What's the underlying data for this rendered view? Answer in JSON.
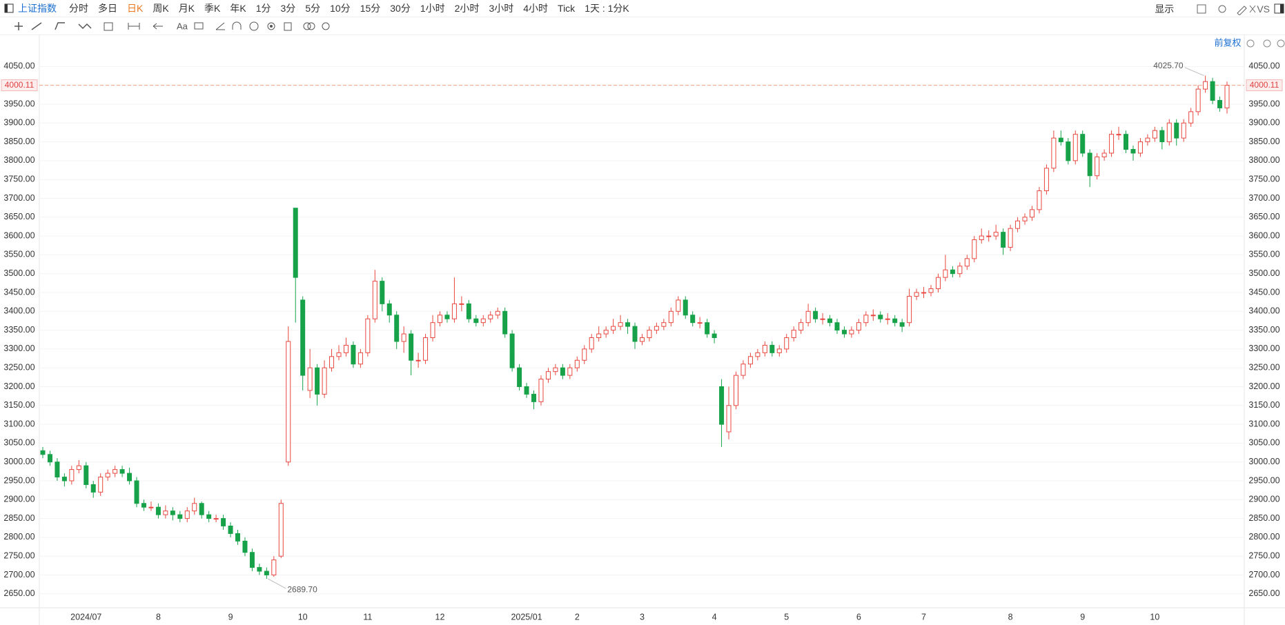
{
  "toolbar": {
    "symbol": "上证指数",
    "periods": [
      "分时",
      "多日",
      "日K",
      "周K",
      "月K",
      "季K",
      "年K",
      "1分",
      "3分",
      "5分",
      "10分",
      "15分",
      "30分",
      "1小时",
      "2小时",
      "3小时",
      "4小时",
      "Tick",
      "1天 : 1分K"
    ],
    "display": "显示",
    "vs": "VS",
    "font_tool": "Aa"
  },
  "chart_data": {
    "type": "candlestick",
    "adjustment": "前复权",
    "categories": [
      null,
      null,
      null,
      null,
      null,
      null,
      "2024/07",
      null,
      null,
      null,
      null,
      null,
      null,
      null,
      null,
      null,
      "8",
      null,
      null,
      null,
      null,
      null,
      null,
      null,
      null,
      null,
      "9",
      null,
      null,
      null,
      null,
      null,
      null,
      null,
      null,
      null,
      "10",
      null,
      null,
      null,
      null,
      null,
      null,
      null,
      null,
      "11",
      null,
      null,
      null,
      null,
      null,
      null,
      null,
      null,
      null,
      "12",
      null,
      null,
      null,
      null,
      null,
      null,
      null,
      null,
      null,
      null,
      null,
      "2025/01",
      null,
      null,
      null,
      null,
      null,
      null,
      "2",
      null,
      null,
      null,
      null,
      null,
      null,
      null,
      null,
      "3",
      null,
      null,
      null,
      null,
      null,
      null,
      null,
      null,
      null,
      "4",
      null,
      null,
      null,
      null,
      null,
      null,
      null,
      null,
      null,
      "5",
      null,
      null,
      null,
      null,
      null,
      null,
      null,
      null,
      null,
      "6",
      null,
      null,
      null,
      null,
      null,
      null,
      null,
      null,
      "7",
      null,
      null,
      null,
      null,
      null,
      null,
      null,
      null,
      null,
      null,
      null,
      "8",
      null,
      null,
      null,
      null,
      null,
      null,
      null,
      null,
      null,
      "9",
      null,
      null,
      null,
      null,
      null,
      null,
      null,
      null,
      null,
      "10",
      null,
      null,
      null,
      null,
      null,
      null,
      null,
      null,
      null,
      null
    ],
    "open": [
      3030,
      3020,
      3000,
      2960,
      2950,
      2980,
      2990,
      2940,
      2920,
      2960,
      2970,
      2980,
      2970,
      2950,
      2890,
      2880,
      2880,
      2860,
      2870,
      2860,
      2850,
      2870,
      2890,
      2860,
      2850,
      2850,
      2830,
      2810,
      2790,
      2760,
      2720,
      2710,
      2700,
      2750,
      3000,
      3674,
      3430,
      3190,
      3250,
      3180,
      3250,
      3280,
      3290,
      3310,
      3260,
      3290,
      3380,
      3480,
      3420,
      3390,
      3320,
      3340,
      3270,
      3270,
      3330,
      3370,
      3390,
      3380,
      3420,
      3420,
      3380,
      3370,
      3380,
      3390,
      3400,
      3340,
      3250,
      3200,
      3180,
      3160,
      3220,
      3240,
      3250,
      3230,
      3250,
      3270,
      3300,
      3330,
      3340,
      3350,
      3360,
      3370,
      3360,
      3320,
      3330,
      3350,
      3360,
      3370,
      3400,
      3430,
      3390,
      3370,
      3370,
      3340,
      3200,
      3080,
      3150,
      3230,
      3260,
      3280,
      3290,
      3310,
      3290,
      3300,
      3330,
      3350,
      3370,
      3400,
      3380,
      3380,
      3370,
      3350,
      3340,
      3350,
      3370,
      3390,
      3390,
      3380,
      3380,
      3370,
      3370,
      3440,
      3450,
      3450,
      3460,
      3490,
      3510,
      3500,
      3520,
      3540,
      3590,
      3600,
      3600,
      3610,
      3570,
      3620,
      3640,
      3650,
      3670,
      3720,
      3780,
      3860,
      3850,
      3800,
      3870,
      3820,
      3760,
      3810,
      3820,
      3870,
      3870,
      3830,
      3820,
      3850,
      3860,
      3880,
      3850,
      3900,
      3860,
      3900,
      3930,
      3990,
      4010,
      3960,
      3940
    ],
    "high": [
      3040,
      3030,
      3010,
      2970,
      2990,
      3005,
      3000,
      2950,
      2970,
      2980,
      2990,
      2990,
      2985,
      2960,
      2900,
      2895,
      2890,
      2885,
      2880,
      2870,
      2880,
      2905,
      2895,
      2870,
      2860,
      2860,
      2840,
      2820,
      2800,
      2770,
      2730,
      2720,
      2750,
      2900,
      3360,
      3674,
      3440,
      3300,
      3260,
      3270,
      3300,
      3310,
      3330,
      3320,
      3300,
      3390,
      3510,
      3490,
      3430,
      3400,
      3360,
      3350,
      3290,
      3340,
      3390,
      3400,
      3400,
      3490,
      3440,
      3430,
      3390,
      3390,
      3400,
      3410,
      3410,
      3350,
      3260,
      3210,
      3190,
      3230,
      3250,
      3260,
      3260,
      3260,
      3280,
      3310,
      3340,
      3360,
      3360,
      3380,
      3390,
      3380,
      3370,
      3340,
      3360,
      3370,
      3380,
      3410,
      3440,
      3440,
      3400,
      3385,
      3380,
      3350,
      3220,
      3200,
      3240,
      3270,
      3290,
      3300,
      3320,
      3320,
      3310,
      3340,
      3360,
      3380,
      3420,
      3410,
      3395,
      3390,
      3380,
      3360,
      3360,
      3380,
      3400,
      3405,
      3400,
      3395,
      3390,
      3380,
      3460,
      3460,
      3465,
      3470,
      3500,
      3550,
      3520,
      3530,
      3550,
      3600,
      3620,
      3615,
      3630,
      3620,
      3630,
      3650,
      3660,
      3680,
      3730,
      3790,
      3880,
      3880,
      3860,
      3880,
      3880,
      3830,
      3820,
      3830,
      3880,
      3890,
      3880,
      3840,
      3860,
      3870,
      3890,
      3890,
      3910,
      3910,
      3910,
      3940,
      4000,
      4025.7,
      4020,
      3970,
      4010
    ],
    "low": [
      3010,
      2990,
      2950,
      2935,
      2940,
      2970,
      2930,
      2905,
      2910,
      2950,
      2960,
      2960,
      2940,
      2880,
      2870,
      2870,
      2850,
      2850,
      2845,
      2840,
      2840,
      2860,
      2850,
      2840,
      2840,
      2820,
      2800,
      2780,
      2750,
      2710,
      2700,
      2689.7,
      2695,
      2745,
      2990,
      3370,
      3190,
      3170,
      3150,
      3170,
      3240,
      3270,
      3280,
      3250,
      3250,
      3280,
      3370,
      3400,
      3370,
      3300,
      3290,
      3230,
      3250,
      3260,
      3320,
      3360,
      3370,
      3370,
      3400,
      3370,
      3360,
      3360,
      3370,
      3380,
      3330,
      3240,
      3190,
      3170,
      3140,
      3150,
      3210,
      3230,
      3220,
      3220,
      3240,
      3260,
      3290,
      3320,
      3330,
      3340,
      3350,
      3340,
      3300,
      3310,
      3320,
      3340,
      3350,
      3360,
      3390,
      3380,
      3360,
      3355,
      3330,
      3315,
      3040,
      3060,
      3140,
      3220,
      3250,
      3270,
      3280,
      3280,
      3280,
      3290,
      3320,
      3340,
      3360,
      3370,
      3365,
      3360,
      3340,
      3330,
      3330,
      3340,
      3360,
      3375,
      3370,
      3365,
      3360,
      3345,
      3360,
      3430,
      3435,
      3440,
      3450,
      3480,
      3490,
      3490,
      3510,
      3530,
      3580,
      3585,
      3590,
      3550,
      3560,
      3610,
      3630,
      3640,
      3660,
      3710,
      3770,
      3840,
      3790,
      3790,
      3810,
      3730,
      3750,
      3800,
      3810,
      3855,
      3820,
      3800,
      3810,
      3840,
      3850,
      3830,
      3840,
      3840,
      3850,
      3890,
      3920,
      3980,
      3950,
      3930,
      3925
    ],
    "close": [
      3020,
      3000,
      2960,
      2950,
      2980,
      2990,
      2940,
      2920,
      2960,
      2970,
      2980,
      2970,
      2950,
      2890,
      2880,
      2880,
      2860,
      2870,
      2860,
      2850,
      2870,
      2890,
      2860,
      2850,
      2850,
      2830,
      2810,
      2790,
      2760,
      2720,
      2710,
      2700,
      2740,
      2890,
      3320,
      3490,
      3230,
      3250,
      3180,
      3250,
      3280,
      3290,
      3310,
      3260,
      3290,
      3380,
      3480,
      3420,
      3390,
      3320,
      3340,
      3270,
      3270,
      3330,
      3370,
      3390,
      3380,
      3420,
      3420,
      3380,
      3370,
      3380,
      3390,
      3400,
      3340,
      3250,
      3200,
      3180,
      3160,
      3220,
      3240,
      3250,
      3230,
      3250,
      3270,
      3300,
      3330,
      3340,
      3350,
      3360,
      3370,
      3360,
      3320,
      3330,
      3350,
      3360,
      3370,
      3400,
      3430,
      3390,
      3370,
      3370,
      3340,
      3330,
      3100,
      3150,
      3230,
      3260,
      3280,
      3290,
      3310,
      3290,
      3300,
      3330,
      3350,
      3370,
      3400,
      3380,
      3380,
      3370,
      3350,
      3340,
      3350,
      3370,
      3390,
      3390,
      3380,
      3380,
      3370,
      3360,
      3440,
      3450,
      3450,
      3460,
      3490,
      3510,
      3500,
      3520,
      3540,
      3590,
      3600,
      3600,
      3610,
      3570,
      3620,
      3640,
      3650,
      3670,
      3720,
      3780,
      3860,
      3850,
      3800,
      3870,
      3820,
      3760,
      3810,
      3820,
      3870,
      3870,
      3830,
      3820,
      3850,
      3860,
      3880,
      3850,
      3900,
      3860,
      3900,
      3930,
      3990,
      4010,
      3960,
      3940,
      4000.11
    ],
    "up_color": "#e8463e",
    "down_color": "#17a249",
    "ylim": [
      2613,
      4091
    ],
    "yticks": [
      {
        "value": 2650,
        "label": "2650.00"
      },
      {
        "value": 2700,
        "label": "2700.00"
      },
      {
        "value": 2750,
        "label": "2750.00"
      },
      {
        "value": 2800,
        "label": "2800.00"
      },
      {
        "value": 2850,
        "label": "2850.00"
      },
      {
        "value": 2900,
        "label": "2900.00"
      },
      {
        "value": 2950,
        "label": "2950.00"
      },
      {
        "value": 3000,
        "label": "3000.00"
      },
      {
        "value": 3050,
        "label": "3050.00"
      },
      {
        "value": 3100,
        "label": "3100.00"
      },
      {
        "value": 3150,
        "label": "3150.00"
      },
      {
        "value": 3200,
        "label": "3200.00"
      },
      {
        "value": 3250,
        "label": "3250.00"
      },
      {
        "value": 3300,
        "label": "3300.00"
      },
      {
        "value": 3350,
        "label": "3350.00"
      },
      {
        "value": 3400,
        "label": "3400.00"
      },
      {
        "value": 3450,
        "label": "3450.00"
      },
      {
        "value": 3500,
        "label": "3500.00"
      },
      {
        "value": 3550,
        "label": "3550.00"
      },
      {
        "value": 3600,
        "label": "3600.00"
      },
      {
        "value": 3650,
        "label": "3650.00"
      },
      {
        "value": 3700,
        "label": "3700.00"
      },
      {
        "value": 3750,
        "label": "3750.00"
      },
      {
        "value": 3800,
        "label": "3800.00"
      },
      {
        "value": 3850,
        "label": "3850.00"
      },
      {
        "value": 3900,
        "label": "3900.00"
      },
      {
        "value": 3950,
        "label": "3950.00"
      },
      {
        "value": 4000,
        "label": "4000.00"
      },
      {
        "value": 4050,
        "label": "4050.00"
      }
    ],
    "grid": true,
    "last_price": {
      "value": 4000.11,
      "label": "4000.11"
    },
    "high_label": {
      "value": 4025.7,
      "label": "4025.70"
    },
    "low_label": {
      "value": 2689.7,
      "label": "2689.70"
    }
  }
}
